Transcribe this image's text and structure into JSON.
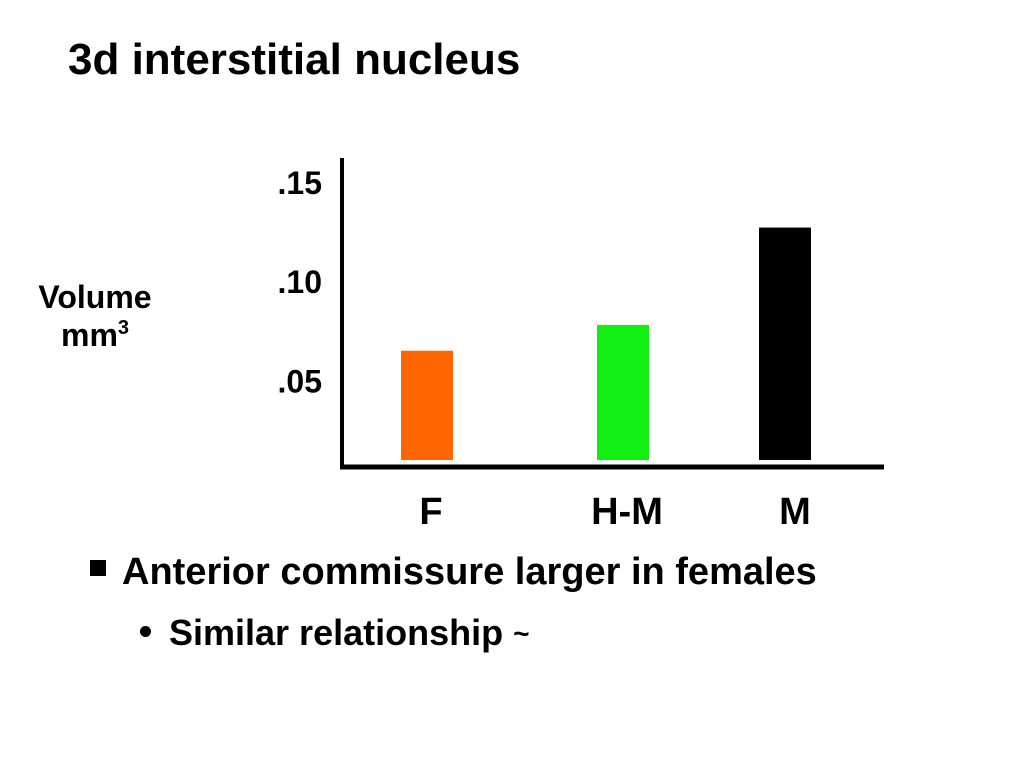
{
  "slide": {
    "title": "3d interstitial nucleus"
  },
  "chart_data": {
    "type": "bar",
    "ylabel": "Volume",
    "ylabel_unit": "mm",
    "ylabel_unit_exponent": "3",
    "categories": [
      "F",
      "H-M",
      "M"
    ],
    "values": [
      0.065,
      0.078,
      0.127
    ],
    "colors": [
      "#ff6600",
      "#11ee11",
      "#000000"
    ],
    "yticks": [
      ".05",
      ".10",
      ".15"
    ],
    "ytick_values": [
      0.05,
      0.1,
      0.15
    ],
    "ylim": [
      0.01,
      0.161
    ],
    "grid": false,
    "legend": "none"
  },
  "bullets": {
    "main": "Anterior commissure larger in females",
    "sub": "Similar relationship",
    "sub_suffix": "~"
  }
}
